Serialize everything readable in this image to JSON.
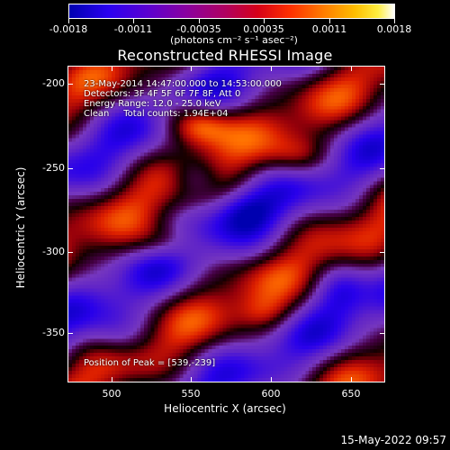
{
  "colorbar": {
    "tick_labels": [
      "-0.0018",
      "-0.0011",
      "-0.00035",
      "0.00035",
      "0.0011",
      "0.0018"
    ],
    "units": "(photons cm⁻² s⁻¹ asec⁻²)"
  },
  "title": "Reconstructed RHESSI Image",
  "info": {
    "line1": "23-May-2014 14:47:00.000 to 14:53:00.000",
    "line2": "Detectors: 3F 4F 5F 6F 7F 8F, Att 0",
    "line3": "Energy Range: 12.0 - 25.0 keV",
    "line4": "Clean     Total counts: 1.94E+04"
  },
  "peak": "Position of Peak = [539,-239]",
  "axes": {
    "x_label": "Heliocentric X (arcsec)",
    "y_label": "Heliocentric Y (arcsec)",
    "x_ticks": [
      "500",
      "550",
      "600",
      "650"
    ],
    "y_ticks": [
      "-200",
      "-250",
      "-300",
      "-350"
    ]
  },
  "timestamp": "15-May-2022 09:57"
}
